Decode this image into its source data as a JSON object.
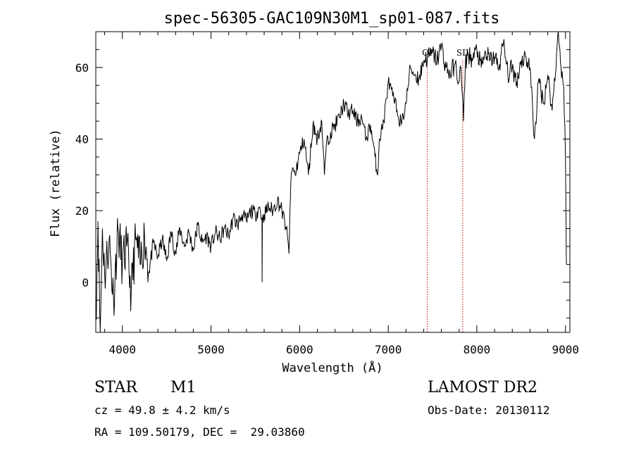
{
  "chart_data": {
    "type": "line",
    "title": "spec-56305-GAC109N30M1_sp01-087.fits",
    "xlabel": "Wavelength (Å)",
    "ylabel": "Flux (relative)",
    "xlim": [
      3700,
      9050
    ],
    "ylim": [
      -14,
      70
    ],
    "xticks": [
      4000,
      5000,
      6000,
      7000,
      8000,
      9000
    ],
    "yticks": [
      0,
      20,
      40,
      60
    ],
    "line_color": "#000000",
    "marker_color": "#c00000",
    "annotations": [
      {
        "wavelength": 7440,
        "label": "OI"
      },
      {
        "wavelength": 7840,
        "label": "SII"
      }
    ],
    "series": [
      {
        "x": [
          3700,
          3725,
          3750,
          3775,
          3800,
          3850,
          3900,
          3950,
          4000,
          4050,
          4100,
          4150,
          4200,
          4250,
          4300,
          4350,
          4400,
          4450,
          4500,
          4550,
          4600,
          4650,
          4700,
          4750,
          4800,
          4850,
          4900,
          4950,
          5000,
          5050,
          5100,
          5150,
          5200,
          5250,
          5300,
          5350,
          5400,
          5450,
          5500,
          5550,
          5575,
          5577,
          5580,
          5600,
          5650,
          5700,
          5750,
          5800,
          5850,
          5880,
          5891,
          5900,
          5920,
          5950,
          6000,
          6050,
          6100,
          6150,
          6200,
          6250,
          6280,
          6300,
          6350,
          6400,
          6450,
          6500,
          6550,
          6600,
          6650,
          6700,
          6750,
          6800,
          6850,
          6880,
          6900,
          6950,
          7000,
          7050,
          7100,
          7150,
          7200,
          7250,
          7300,
          7350,
          7400,
          7450,
          7500,
          7550,
          7600,
          7650,
          7700,
          7750,
          7800,
          7820,
          7850,
          7870,
          7900,
          7950,
          8000,
          8050,
          8100,
          8150,
          8200,
          8250,
          8300,
          8350,
          8400,
          8450,
          8500,
          8550,
          8600,
          8650,
          8700,
          8750,
          8800,
          8850,
          8900,
          8920,
          8950,
          8980,
          9000,
          9010
        ],
        "y": [
          -10,
          17,
          -14,
          15,
          2,
          12,
          -5,
          15,
          5,
          10,
          -3,
          12,
          5,
          13,
          3,
          11,
          7,
          12,
          6,
          14,
          8,
          15,
          10,
          14,
          9,
          16,
          11,
          13,
          10,
          14,
          12,
          15,
          13,
          18,
          16,
          19,
          17,
          20,
          19,
          21,
          18,
          0,
          17,
          19,
          21,
          20,
          23,
          20,
          15,
          8,
          20,
          27,
          32,
          30,
          36,
          40,
          30,
          44,
          40,
          45,
          30,
          38,
          42,
          44,
          46,
          50,
          47,
          48,
          45,
          46,
          40,
          44,
          35,
          30,
          40,
          45,
          56,
          52,
          48,
          44,
          50,
          60,
          58,
          57,
          62,
          63,
          64,
          62,
          66,
          60,
          58,
          61,
          56,
          60,
          45,
          61,
          64,
          62,
          65,
          60,
          64,
          62,
          63,
          60,
          67,
          58,
          60,
          56,
          62,
          63,
          60,
          40,
          57,
          50,
          58,
          48,
          64,
          70,
          60,
          55,
          35,
          5
        ]
      }
    ]
  },
  "footer": {
    "object_class": "STAR",
    "subclass": "M1",
    "survey": "LAMOST DR2",
    "cz": "cz = 49.8 ± 4.2 km/s",
    "obs_date": "Obs-Date: 20130112",
    "coords": "RA = 109.50179, DEC =  29.03860"
  }
}
